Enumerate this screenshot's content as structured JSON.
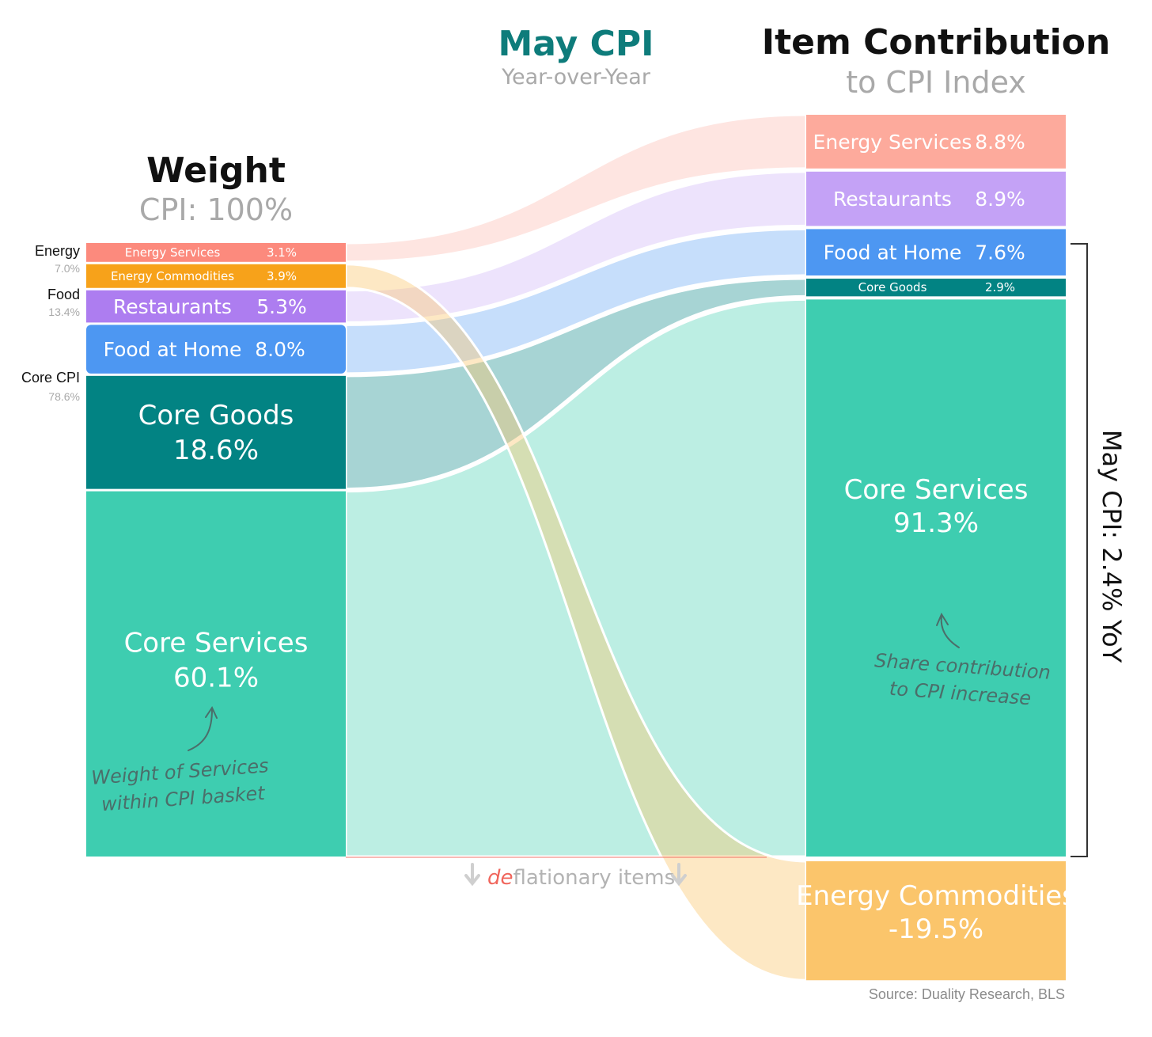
{
  "header": {
    "left_title": "Weight",
    "left_subtitle": "CPI: 100%",
    "center_title": "May CPI",
    "center_subtitle": "Year-over-Year",
    "right_title": "Item Contribution",
    "right_subtitle": "to CPI Index"
  },
  "groups": [
    {
      "name": "Energy",
      "pct": "7.0%"
    },
    {
      "name": "Food",
      "pct": "13.4%"
    },
    {
      "name": "Core CPI",
      "pct": "78.6%"
    }
  ],
  "deflationary": {
    "prefix": "de",
    "rest": "flationary items"
  },
  "yoy_label": "May CPI: 2.4% YoY",
  "annotations": {
    "left_line1": "Weight of Services",
    "left_line2": "within CPI basket",
    "right_line1": "Share contribution",
    "right_line2": "to CPI increase"
  },
  "source": "Source: Duality Research, BLS",
  "colors": {
    "energy_services": "#fc8a7d",
    "energy_commodities": "#f7a21a",
    "energy_commodities_right": "#fbc56b",
    "restaurants": "#ad7df0",
    "food_at_home": "#4d97f2",
    "core_goods": "#028383",
    "core_services": "#3ecdb0"
  },
  "chart_data": {
    "type": "sankey",
    "title": "May CPI",
    "subtitle": "Year-over-Year",
    "left_axis_title": "Weight",
    "right_axis_title": "Item Contribution",
    "nodes": [
      {
        "name": "Energy Services",
        "group": "Energy",
        "weight": 3.1,
        "weight_label": "3.1%",
        "contribution": 8.8,
        "contribution_label": "8.8%",
        "color": "#fc8a7d",
        "right_color": "#fdaa9c"
      },
      {
        "name": "Energy Commodities",
        "group": "Energy",
        "weight": 3.9,
        "weight_label": "3.9%",
        "contribution": -19.5,
        "contribution_label": "-19.5%",
        "color": "#f7a21a",
        "right_color": "#fbc56b"
      },
      {
        "name": "Restaurants",
        "group": "Food",
        "weight": 5.3,
        "weight_label": "5.3%",
        "contribution": 8.9,
        "contribution_label": "8.9%",
        "color": "#ad7df0",
        "right_color": "#c4a2f6"
      },
      {
        "name": "Food at Home",
        "group": "Food",
        "weight": 8.0,
        "weight_label": "8.0%",
        "contribution": 7.6,
        "contribution_label": "7.6%",
        "color": "#4d97f2",
        "right_color": "#4d97f2"
      },
      {
        "name": "Core Goods",
        "group": "Core CPI",
        "weight": 18.6,
        "weight_label": "18.6%",
        "contribution": 2.9,
        "contribution_label": "2.9%",
        "color": "#028383",
        "right_color": "#028383"
      },
      {
        "name": "Core Services",
        "group": "Core CPI",
        "weight": 60.1,
        "weight_label": "60.1%",
        "contribution": 91.3,
        "contribution_label": "91.3%",
        "color": "#3ecdb0",
        "right_color": "#3ecdb0"
      }
    ],
    "right_order": [
      "Energy Services",
      "Restaurants",
      "Food at Home",
      "Core Goods",
      "Core Services",
      "Energy Commodities"
    ],
    "total_yoy": 2.4
  }
}
